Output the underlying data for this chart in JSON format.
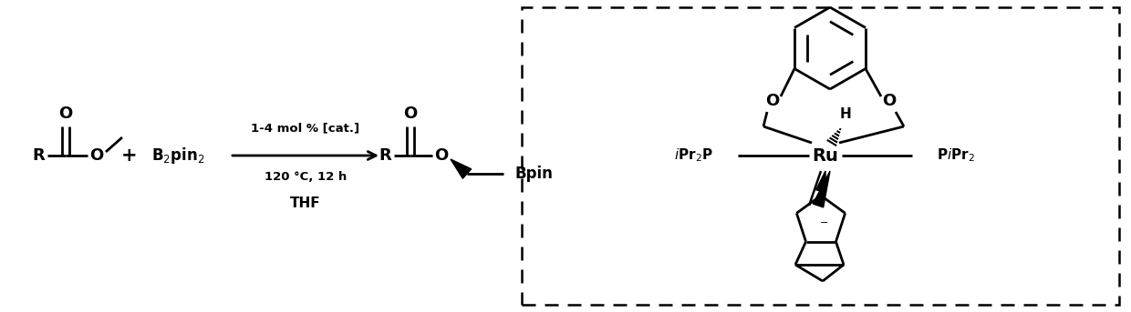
{
  "background_color": "#ffffff",
  "line_color": "#000000",
  "line_width": 2.0,
  "fig_width": 12.4,
  "fig_height": 3.43,
  "dpi": 100,
  "arrow_text_above": "1-4 mol % [cat.]",
  "arrow_text_below1": "120 °C, 12 h",
  "arrow_text_below2": "THF",
  "plus_sign": "+",
  "cat_O1": "O",
  "cat_O2": "O",
  "cat_H": "H",
  "cat_Ru": "Ru",
  "dashed_box_color": "#000000"
}
